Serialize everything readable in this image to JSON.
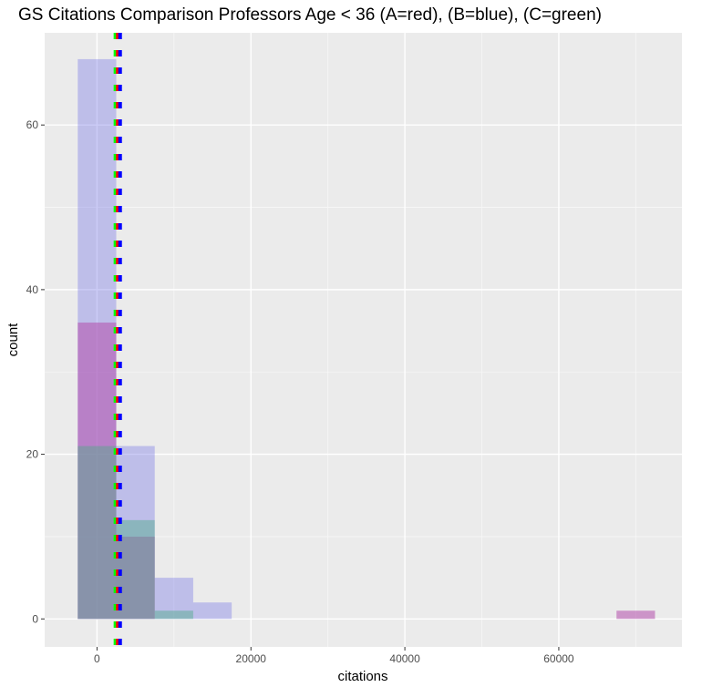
{
  "chart_data": {
    "type": "histogram",
    "title": "GS Citations Comparison Professors Age < 36 (A=red), (B=blue), (C=green)",
    "xlabel": "citations",
    "ylabel": "count",
    "xlim": [
      -6800,
      76000
    ],
    "ylim": [
      -3.4,
      71.2
    ],
    "x_ticks": [
      0,
      20000,
      40000,
      60000
    ],
    "x_tick_labels": [
      "0",
      "20000",
      "40000",
      "60000"
    ],
    "y_ticks": [
      0,
      20,
      40,
      60
    ],
    "y_tick_labels": [
      "0",
      "20",
      "40",
      "60"
    ],
    "bin_width": 5000,
    "bin_starts": [
      -2500,
      2500,
      7500,
      12500,
      67500
    ],
    "series": [
      {
        "group": "A",
        "color": "#b34dab",
        "counts": [
          36,
          10,
          0,
          0,
          1
        ]
      },
      {
        "group": "B",
        "color": "#6a6ae6",
        "counts": [
          68,
          21,
          5,
          2,
          0
        ]
      },
      {
        "group": "C",
        "color": "#4daa88",
        "counts": [
          21,
          12,
          1,
          0,
          0
        ]
      }
    ],
    "mean_lines": [
      {
        "group": "C",
        "x": 2400,
        "color": "#00ff00",
        "style": "dashed"
      },
      {
        "group": "A",
        "x": 2700,
        "color": "#ff0000",
        "style": "dashed"
      },
      {
        "group": "B",
        "x": 3000,
        "color": "#0000ff",
        "style": "dashed"
      }
    ],
    "grid": true,
    "panel_background": "#ebebeb"
  }
}
